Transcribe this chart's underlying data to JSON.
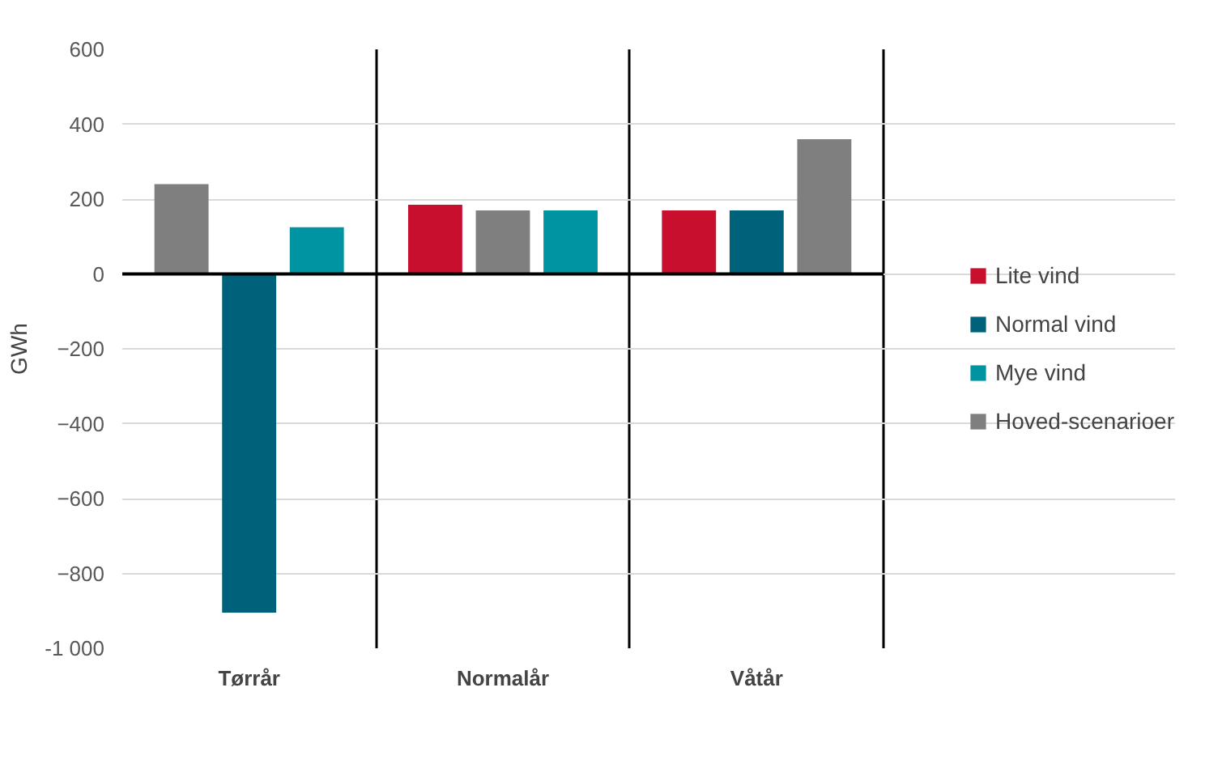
{
  "chart_data": {
    "type": "bar",
    "ylabel": "GWh",
    "categories": [
      "Tørrår",
      "Normalår",
      "Våtår"
    ],
    "series": [
      {
        "name": "Lite vind",
        "color": "#c8102e",
        "values": [
          null,
          185,
          170
        ]
      },
      {
        "name": "Normal vind",
        "color": "#00627a",
        "values": [
          -905,
          null,
          170
        ]
      },
      {
        "name": "Mye vind",
        "color": "#0094a3",
        "values": [
          125,
          170,
          null
        ]
      },
      {
        "name": "Hoved-scenarioer",
        "color": "#7f7f7f",
        "values": [
          240,
          170,
          360
        ]
      }
    ],
    "ylim": [
      -1000,
      600
    ],
    "yticks": [
      {
        "value": -1000,
        "label": "-1 000"
      },
      -800,
      -600,
      -400,
      -200,
      0,
      200,
      400,
      600
    ],
    "ref_lines": [
      {
        "axis": "y",
        "value": 0,
        "color": "#000000"
      }
    ],
    "grid": true,
    "legend": "right"
  }
}
